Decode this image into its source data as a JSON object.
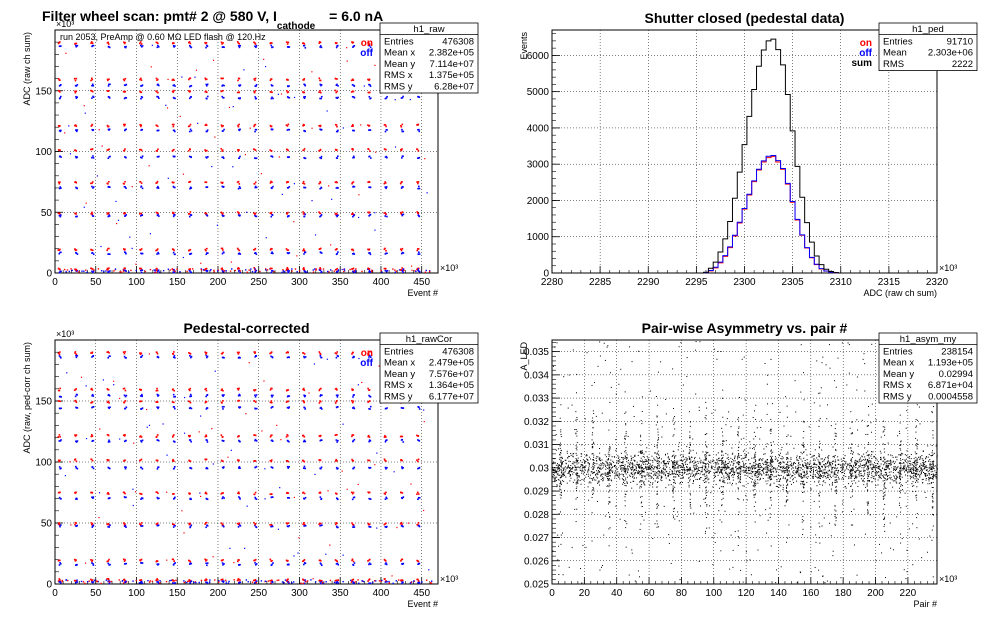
{
  "chart_data": [
    {
      "id": "raw",
      "type": "scatter",
      "title_main": "Filter wheel scan: pmt#   2 @   580 V, I",
      "title_sub": "cathode",
      "title_tail": "= 6.0 nA",
      "annotation": "run 2053, PreAmp @ 0.60 MΩ   LED flash @  120.Hz",
      "xlabel": "Event #",
      "ylabel": "ADC (raw ch sum)",
      "x_exponent": "×10³",
      "y_exponent": "×10³",
      "xlim": [
        0,
        470
      ],
      "ylim": [
        0,
        200
      ],
      "x_ticks": [
        "0",
        "50",
        "100",
        "150",
        "200",
        "250",
        "300",
        "350",
        "400",
        "450"
      ],
      "y_ticks": [
        "0",
        "50",
        "100",
        "150"
      ],
      "grid": true,
      "legend": [
        {
          "label": "on",
          "color": "#ff0000"
        },
        {
          "label": "off",
          "color": "#0000ff"
        }
      ],
      "stats": {
        "name": "h1_raw",
        "rows": [
          [
            "Entries",
            "476308"
          ],
          [
            "Mean x",
            "2.382e+05"
          ],
          [
            "Mean y",
            "7.114e+07"
          ],
          [
            "RMS x",
            "1.375e+05"
          ],
          [
            "RMS y",
            "6.28e+07"
          ]
        ]
      },
      "level_groups": [
        {
          "on": 190,
          "off": 187
        },
        {
          "on": 160,
          "off": 155
        },
        {
          "on": 150,
          "off": 145
        },
        {
          "on": 122,
          "off": 118
        },
        {
          "on": 102,
          "off": 96
        },
        {
          "on": 75,
          "off": 71
        },
        {
          "on": 50,
          "off": 48
        },
        {
          "on": 20,
          "off": 17
        },
        {
          "on": 4,
          "off": 2
        }
      ],
      "period": 20
    },
    {
      "id": "ped",
      "type": "line",
      "title": "Shutter closed (pedestal data)",
      "xlabel": "ADC (raw ch sum)",
      "ylabel": "Events",
      "x_exponent": "×10³",
      "xlim": [
        2280,
        2320
      ],
      "ylim": [
        0,
        6700
      ],
      "x_ticks": [
        "2280",
        "2285",
        "2290",
        "2295",
        "2300",
        "2305",
        "2310",
        "2315",
        "2320"
      ],
      "y_ticks": [
        "0",
        "1000",
        "2000",
        "3000",
        "4000",
        "5000",
        "6000"
      ],
      "grid": true,
      "legend": [
        {
          "label": "on",
          "color": "#ff0000"
        },
        {
          "label": "off",
          "color": "#0000ff"
        },
        {
          "label": "sum",
          "color": "#000000"
        }
      ],
      "stats": {
        "name": "h1_ped",
        "rows": [
          [
            "Entries",
            "91710"
          ],
          [
            "Mean",
            "2.303e+06"
          ],
          [
            "RMS",
            "2222"
          ]
        ]
      },
      "x": [
        2296,
        2296.5,
        2297,
        2297.5,
        2298,
        2298.5,
        2299,
        2299.5,
        2300,
        2300.5,
        2301,
        2301.5,
        2302,
        2302.5,
        2303,
        2303.5,
        2304,
        2304.5,
        2305,
        2305.5,
        2306,
        2306.5,
        2307,
        2307.5,
        2308,
        2308.5,
        2309,
        2309.5,
        2310
      ],
      "series": [
        {
          "name": "on",
          "color": "#ff0000",
          "values": [
            10,
            60,
            140,
            280,
            460,
            700,
            1020,
            1380,
            1760,
            2150,
            2520,
            2840,
            3060,
            3180,
            3210,
            3060,
            2860,
            2450,
            1950,
            1460,
            1040,
            690,
            420,
            230,
            110,
            50,
            20,
            5,
            0
          ]
        },
        {
          "name": "off",
          "color": "#0000ff",
          "values": [
            10,
            70,
            160,
            300,
            480,
            720,
            1040,
            1400,
            1780,
            2170,
            2540,
            2860,
            3090,
            3220,
            3240,
            3100,
            2880,
            2470,
            1970,
            1480,
            1050,
            700,
            430,
            240,
            120,
            55,
            22,
            6,
            0
          ]
        },
        {
          "name": "sum",
          "color": "#000000",
          "values": [
            20,
            130,
            300,
            580,
            940,
            1420,
            2060,
            2780,
            3540,
            4320,
            5060,
            5700,
            6150,
            6400,
            6450,
            6160,
            5740,
            4920,
            3920,
            2940,
            2090,
            1390,
            850,
            470,
            230,
            105,
            42,
            11,
            0
          ]
        }
      ]
    },
    {
      "id": "rawcor",
      "type": "scatter",
      "title": "Pedestal-corrected",
      "xlabel": "Event #",
      "ylabel": "ADC (raw, ped-corr ch sum)",
      "x_exponent": "×10³",
      "y_exponent": "×10³",
      "xlim": [
        0,
        470
      ],
      "ylim": [
        0,
        200
      ],
      "x_ticks": [
        "0",
        "50",
        "100",
        "150",
        "200",
        "250",
        "300",
        "350",
        "400",
        "450"
      ],
      "y_ticks": [
        "0",
        "50",
        "100",
        "150"
      ],
      "grid": true,
      "legend": [
        {
          "label": "on",
          "color": "#ff0000"
        },
        {
          "label": "off",
          "color": "#0000ff"
        }
      ],
      "stats": {
        "name": "h1_rawCor",
        "rows": [
          [
            "Entries",
            "476308"
          ],
          [
            "Mean x",
            "2.479e+05"
          ],
          [
            "Mean y",
            "7.576e+07"
          ],
          [
            "RMS x",
            "1.364e+05"
          ],
          [
            "RMS y",
            "6.177e+07"
          ]
        ]
      },
      "level_groups": [
        {
          "on": 190,
          "off": 187
        },
        {
          "on": 160,
          "off": 155
        },
        {
          "on": 150,
          "off": 145
        },
        {
          "on": 122,
          "off": 118
        },
        {
          "on": 102,
          "off": 96
        },
        {
          "on": 75,
          "off": 71
        },
        {
          "on": 50,
          "off": 48
        },
        {
          "on": 20,
          "off": 17
        },
        {
          "on": 4,
          "off": 2
        }
      ],
      "period": 20
    },
    {
      "id": "asym",
      "type": "scatter",
      "title": "Pair-wise Asymmetry vs. pair #",
      "xlabel": "Pair #",
      "ylabel": "A_LED",
      "x_exponent": "×10³",
      "xlim": [
        0,
        238
      ],
      "ylim": [
        0.025,
        0.0355
      ],
      "x_ticks": [
        "0",
        "20",
        "40",
        "60",
        "80",
        "100",
        "120",
        "140",
        "160",
        "180",
        "200",
        "220"
      ],
      "y_ticks": [
        "0.025",
        "0.026",
        "0.027",
        "0.028",
        "0.029",
        "0.03",
        "0.031",
        "0.032",
        "0.033",
        "0.034",
        "0.035"
      ],
      "grid": true,
      "stats": {
        "name": "h1_asym_my",
        "rows": [
          [
            "Entries",
            "238154"
          ],
          [
            "Mean x",
            "1.193e+05"
          ],
          [
            "Mean y",
            "0.02994"
          ],
          [
            "RMS x",
            "6.871e+04"
          ],
          [
            "RMS y",
            "0.0004558"
          ]
        ]
      },
      "center": 0.03,
      "band_halfwidth": 0.0006,
      "spike_period": 10
    }
  ]
}
